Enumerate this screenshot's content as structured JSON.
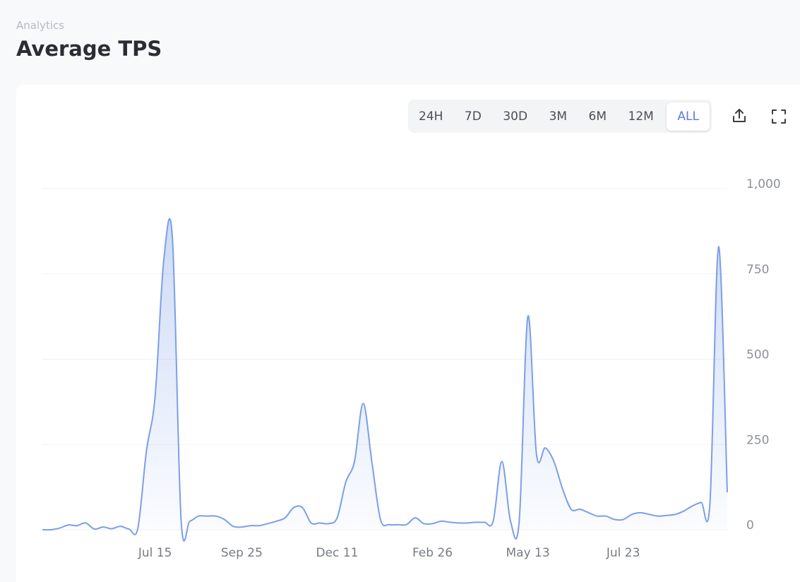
{
  "header": {
    "breadcrumb": "Analytics",
    "title": "Average TPS"
  },
  "range_buttons": {
    "labels": [
      "24H",
      "7D",
      "30D",
      "3M",
      "6M",
      "12M",
      "ALL"
    ],
    "active": 6
  },
  "chart_data": {
    "type": "area",
    "categories": [
      null,
      null,
      null,
      null,
      null,
      null,
      null,
      null,
      null,
      null,
      null,
      null,
      null,
      "Jul 15",
      null,
      null,
      null,
      null,
      null,
      null,
      null,
      null,
      null,
      "Sep 25",
      null,
      null,
      null,
      null,
      null,
      null,
      null,
      null,
      null,
      null,
      "Dec 11",
      null,
      null,
      null,
      null,
      null,
      null,
      null,
      null,
      null,
      null,
      "Feb 26",
      null,
      null,
      null,
      null,
      null,
      null,
      null,
      null,
      null,
      null,
      "May 13",
      null,
      null,
      null,
      null,
      null,
      null,
      null,
      null,
      null,
      null,
      "Jul 23",
      null,
      null,
      null,
      null,
      null,
      null,
      null,
      null,
      null,
      null,
      null,
      null
    ],
    "series": [
      {
        "name": "Average TPS",
        "color": "#7b9fe8",
        "values": [
          0,
          0,
          5,
          14,
          12,
          20,
          2,
          8,
          3,
          10,
          2,
          3,
          230,
          390,
          790,
          855,
          30,
          25,
          40,
          40,
          40,
          30,
          10,
          8,
          12,
          12,
          18,
          25,
          35,
          65,
          65,
          20,
          20,
          18,
          35,
          140,
          200,
          370,
          200,
          30,
          15,
          15,
          15,
          35,
          18,
          18,
          25,
          22,
          20,
          20,
          22,
          22,
          25,
          200,
          25,
          25,
          625,
          220,
          240,
          200,
          120,
          60,
          60,
          50,
          40,
          40,
          30,
          30,
          45,
          50,
          45,
          40,
          42,
          45,
          55,
          70,
          80,
          78,
          830,
          110
        ]
      }
    ],
    "ylim": [
      0,
      1000
    ],
    "yticks": [
      0,
      250,
      500,
      750,
      {
        "value": 1000,
        "label": "1,000"
      }
    ],
    "grid": true
  }
}
